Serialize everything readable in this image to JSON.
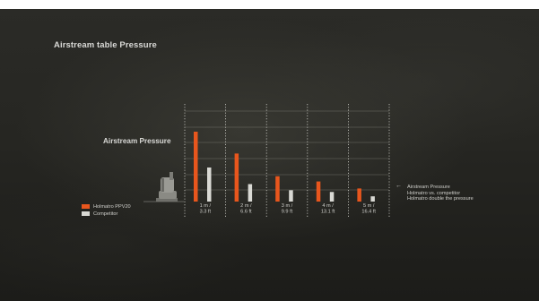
{
  "page": {
    "title": "Airstream table Pressure"
  },
  "chart_data": {
    "type": "bar",
    "heading": "Airstream Pressure",
    "categories": [
      [
        "1 m /",
        "3.3 ft"
      ],
      [
        "2 m /",
        "6.6 ft"
      ],
      [
        "3 m /",
        "9.9 ft"
      ],
      [
        "4 m /",
        "13.1 ft"
      ],
      [
        "5 m /",
        "16.4 ft"
      ]
    ],
    "series": [
      {
        "name": "Holmatro PPV20",
        "color": "#e8561d",
        "values": [
          4.0,
          2.75,
          1.45,
          1.15,
          0.75
        ]
      },
      {
        "name": "Competitor",
        "color": "#d9d9d4",
        "values": [
          1.95,
          1.0,
          0.65,
          0.55,
          0.3
        ]
      }
    ],
    "ylim": [
      0,
      5
    ],
    "grid": true,
    "legend_position": "left"
  },
  "annotation": {
    "arrow": "←",
    "lines": [
      "Airstream Pressure",
      "Holmatro vs. competitor",
      "Holmatro double the pressure"
    ]
  },
  "icons": [
    "fan-icon"
  ]
}
